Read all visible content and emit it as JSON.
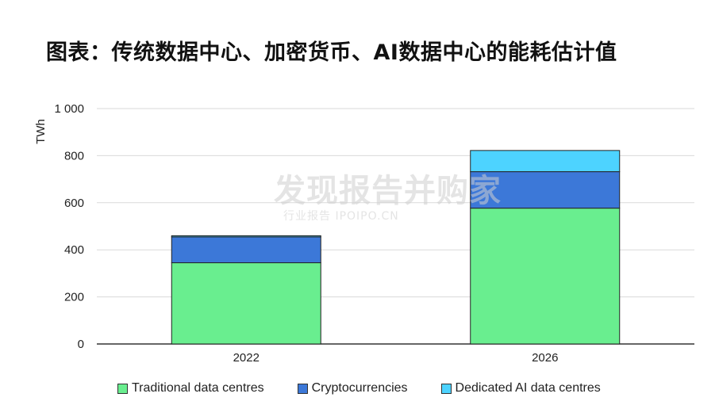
{
  "title": "图表：传统数据中心、加密货币、AI数据中心的能耗估计值",
  "watermark": {
    "main": "发现报告并购家",
    "sub": "行业报告 IPOIPO.CN"
  },
  "chart_data": {
    "type": "bar",
    "stacked": true,
    "categories": [
      "2022",
      "2026"
    ],
    "series": [
      {
        "name": "Traditional data centres",
        "values": [
          345,
          577
        ],
        "color": "#69ee8f"
      },
      {
        "name": "Cryptocurrencies",
        "values": [
          110,
          155
        ],
        "color": "#3c78d8"
      },
      {
        "name": "Dedicated AI data centres",
        "values": [
          5,
          90
        ],
        "color": "#4dd3ff"
      }
    ],
    "ylabel": "TWh",
    "ylim": [
      0,
      1000
    ],
    "yticks": [
      0,
      200,
      400,
      600,
      800,
      1000
    ],
    "ytick_labels": [
      "0",
      "200",
      "400",
      "600",
      "800",
      "1 000"
    ],
    "grid": true,
    "legend_position": "bottom"
  }
}
